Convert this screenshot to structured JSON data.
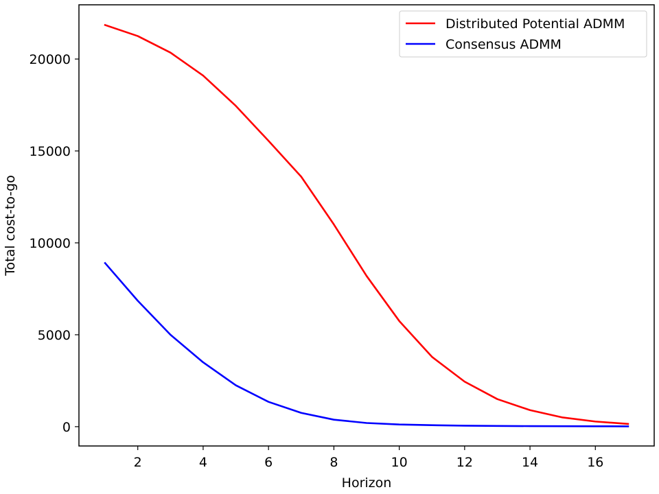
{
  "chart_data": {
    "type": "line",
    "title": "",
    "xlabel": "Horizon",
    "ylabel": "Total cost-to-go",
    "xlim": [
      0.2,
      17.8
    ],
    "ylim": [
      -1050,
      22950
    ],
    "x_ticks": [
      2,
      4,
      6,
      8,
      10,
      12,
      14,
      16
    ],
    "y_ticks": [
      0,
      5000,
      10000,
      15000,
      20000
    ],
    "grid": false,
    "legend_position": "upper-right",
    "x": [
      1,
      2,
      3,
      4,
      5,
      6,
      7,
      8,
      9,
      10,
      11,
      12,
      13,
      14,
      15,
      16,
      17
    ],
    "series": [
      {
        "name": "Distributed Potential ADMM",
        "color": "#ff0000",
        "values": [
          21850,
          21250,
          20350,
          19100,
          17450,
          15550,
          13600,
          11000,
          8200,
          5750,
          3800,
          2450,
          1500,
          900,
          500,
          280,
          150
        ]
      },
      {
        "name": "Consensus ADMM",
        "color": "#0000ff",
        "values": [
          8900,
          6850,
          5000,
          3500,
          2250,
          1350,
          750,
          380,
          200,
          120,
          80,
          55,
          40,
          30,
          25,
          20,
          18
        ]
      }
    ]
  }
}
